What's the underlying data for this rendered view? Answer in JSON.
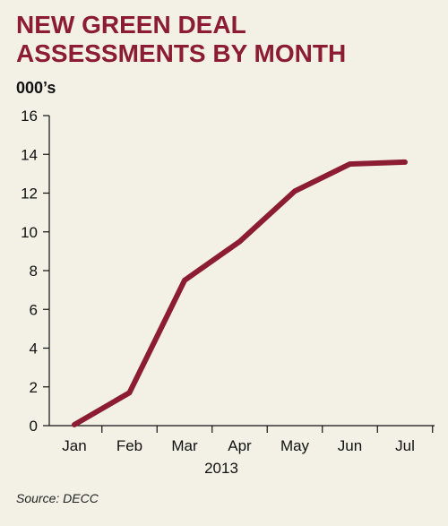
{
  "title": "NEW GREEN DEAL ASSESSMENTS BY MONTH",
  "unit_label": "000’s",
  "source": "Source: DECC",
  "colors": {
    "line": "#8c1c32",
    "title": "#8c1c32",
    "background": "#f3f0e6"
  },
  "chart_data": {
    "type": "line",
    "title": "NEW GREEN DEAL ASSESSMENTS BY MONTH",
    "ylabel": "000’s",
    "xlabel": "2013",
    "categories": [
      "Jan",
      "Feb",
      "Mar",
      "Apr",
      "May",
      "Jun",
      "Jul"
    ],
    "series": [
      {
        "values": [
          0.05,
          1.7,
          7.5,
          9.5,
          12.1,
          13.5,
          13.6
        ]
      }
    ],
    "ylim": [
      0,
      16
    ],
    "yticks": [
      "0",
      "2",
      "4",
      "6",
      "8",
      "10",
      "12",
      "14",
      "16"
    ],
    "grid": false
  }
}
